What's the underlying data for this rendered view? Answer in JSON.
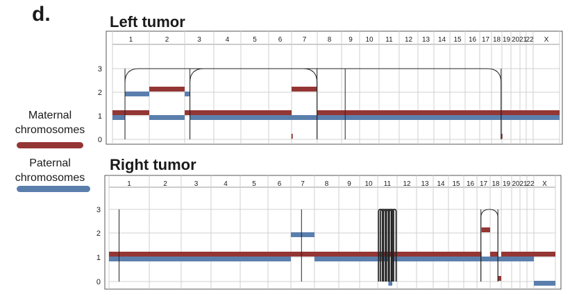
{
  "panel_label": "d.",
  "legend": {
    "maternal_label": "Maternal chromosomes",
    "paternal_label": "Paternal chromosomes",
    "maternal_color": "#943634",
    "paternal_color": "#5b7fad"
  },
  "chart_data": [
    {
      "type": "copy-number-track",
      "title": "Left tumor",
      "chromosomes": [
        "1",
        "2",
        "3",
        "4",
        "5",
        "6",
        "7",
        "8",
        "9",
        "10",
        "11",
        "12",
        "13",
        "14",
        "15",
        "16",
        "17",
        "18",
        "19",
        "20",
        "21",
        "22",
        "X"
      ],
      "y_ticks": [
        0,
        1,
        2,
        3
      ],
      "ylim": [
        0,
        3
      ],
      "grid": true,
      "maternal_segments": [
        {
          "chrom": "1",
          "start": 0.0,
          "end": 1.0,
          "copy": 1
        },
        {
          "chrom": "2",
          "start": 0.0,
          "end": 1.0,
          "copy": 2
        },
        {
          "chrom": "3",
          "start": 0.0,
          "end": 1.0,
          "copy": 1
        },
        {
          "chrom": "4",
          "start": 0.0,
          "end": 1.0,
          "copy": 1
        },
        {
          "chrom": "5",
          "start": 0.0,
          "end": 1.0,
          "copy": 1
        },
        {
          "chrom": "6",
          "start": 0.0,
          "end": 1.0,
          "copy": 1
        },
        {
          "chrom": "7",
          "start": 0.0,
          "end": 1.0,
          "copy": 2
        },
        {
          "chrom": "8",
          "start": 0.0,
          "end": 1.0,
          "copy": 1
        },
        {
          "chrom": "9",
          "start": 0.0,
          "end": 1.0,
          "copy": 1
        },
        {
          "chrom": "10",
          "start": 0.0,
          "end": 1.0,
          "copy": 1
        },
        {
          "chrom": "11",
          "start": 0.0,
          "end": 1.0,
          "copy": 1
        },
        {
          "chrom": "12",
          "start": 0.0,
          "end": 1.0,
          "copy": 1
        },
        {
          "chrom": "13",
          "start": 0.0,
          "end": 1.0,
          "copy": 1
        },
        {
          "chrom": "14",
          "start": 0.0,
          "end": 1.0,
          "copy": 1
        },
        {
          "chrom": "15",
          "start": 0.0,
          "end": 1.0,
          "copy": 1
        },
        {
          "chrom": "16",
          "start": 0.0,
          "end": 1.0,
          "copy": 1
        },
        {
          "chrom": "17",
          "start": 0.0,
          "end": 1.0,
          "copy": 1
        },
        {
          "chrom": "18",
          "start": 0.0,
          "end": 1.0,
          "copy": 1
        },
        {
          "chrom": "19",
          "start": 0.0,
          "end": 1.0,
          "copy": 1
        },
        {
          "chrom": "20",
          "start": 0.0,
          "end": 1.0,
          "copy": 1
        },
        {
          "chrom": "21",
          "start": 0.0,
          "end": 1.0,
          "copy": 1
        },
        {
          "chrom": "22",
          "start": 0.0,
          "end": 1.0,
          "copy": 1
        },
        {
          "chrom": "X",
          "start": 0.0,
          "end": 1.0,
          "copy": 1
        },
        {
          "chrom": "6",
          "start": 0.99,
          "end": 1.0,
          "copy": 0
        },
        {
          "chrom": "18",
          "start": 0.92,
          "end": 1.0,
          "copy": 0
        }
      ],
      "paternal_segments": [
        {
          "chrom": "1",
          "start": 0.0,
          "end": 0.34,
          "copy": 1
        },
        {
          "chrom": "1",
          "start": 0.34,
          "end": 1.0,
          "copy": 2
        },
        {
          "chrom": "2",
          "start": 0.0,
          "end": 1.0,
          "copy": 1
        },
        {
          "chrom": "3",
          "start": 0.0,
          "end": 0.18,
          "copy": 2
        },
        {
          "chrom": "3",
          "start": 0.18,
          "end": 1.0,
          "copy": 1
        },
        {
          "chrom": "4",
          "start": 0.0,
          "end": 1.0,
          "copy": 1
        },
        {
          "chrom": "5",
          "start": 0.0,
          "end": 1.0,
          "copy": 1
        },
        {
          "chrom": "6",
          "start": 0.0,
          "end": 1.0,
          "copy": 1
        },
        {
          "chrom": "7",
          "start": 0.0,
          "end": 1.0,
          "copy": 1
        },
        {
          "chrom": "8",
          "start": 0.0,
          "end": 1.0,
          "copy": 1
        },
        {
          "chrom": "9",
          "start": 0.0,
          "end": 1.0,
          "copy": 1
        },
        {
          "chrom": "10",
          "start": 0.0,
          "end": 1.0,
          "copy": 1
        },
        {
          "chrom": "11",
          "start": 0.0,
          "end": 1.0,
          "copy": 1
        },
        {
          "chrom": "12",
          "start": 0.0,
          "end": 1.0,
          "copy": 1
        },
        {
          "chrom": "13",
          "start": 0.0,
          "end": 1.0,
          "copy": 1
        },
        {
          "chrom": "14",
          "start": 0.0,
          "end": 1.0,
          "copy": 1
        },
        {
          "chrom": "15",
          "start": 0.0,
          "end": 1.0,
          "copy": 1
        },
        {
          "chrom": "16",
          "start": 0.0,
          "end": 1.0,
          "copy": 1
        },
        {
          "chrom": "17",
          "start": 0.0,
          "end": 1.0,
          "copy": 1
        },
        {
          "chrom": "18",
          "start": 0.0,
          "end": 1.0,
          "copy": 1
        },
        {
          "chrom": "19",
          "start": 0.0,
          "end": 1.0,
          "copy": 1
        },
        {
          "chrom": "20",
          "start": 0.0,
          "end": 1.0,
          "copy": 1
        },
        {
          "chrom": "21",
          "start": 0.0,
          "end": 1.0,
          "copy": 1
        },
        {
          "chrom": "22",
          "start": 0.0,
          "end": 1.0,
          "copy": 1
        },
        {
          "chrom": "X",
          "start": 0.0,
          "end": 1.0,
          "copy": 1
        }
      ],
      "breakpoints": [
        {
          "chrom": "1",
          "pos": 0.34
        },
        {
          "chrom": "3",
          "pos": 0.18
        },
        {
          "chrom": "7",
          "pos": 0.99
        },
        {
          "chrom": "9",
          "pos": 0.2
        },
        {
          "chrom": "18",
          "pos": 0.92
        }
      ],
      "arcs": [
        {
          "from_chrom": "1",
          "from_pos": 0.34,
          "to_chrom": "7",
          "to_pos": 0.99
        },
        {
          "from_chrom": "3",
          "from_pos": 0.18,
          "to_chrom": "18",
          "to_pos": 0.92
        }
      ]
    },
    {
      "type": "copy-number-track",
      "title": "Right tumor",
      "chromosomes": [
        "1",
        "2",
        "3",
        "4",
        "5",
        "6",
        "7",
        "8",
        "9",
        "10",
        "11",
        "12",
        "13",
        "14",
        "15",
        "16",
        "17",
        "18",
        "19",
        "20",
        "21",
        "22",
        "X"
      ],
      "y_ticks": [
        0,
        1,
        2,
        3
      ],
      "ylim": [
        0,
        3
      ],
      "grid": true,
      "maternal_segments": [
        {
          "chrom": "1",
          "start": 0.0,
          "end": 1.0,
          "copy": 1
        },
        {
          "chrom": "2",
          "start": 0.0,
          "end": 1.0,
          "copy": 1
        },
        {
          "chrom": "3",
          "start": 0.0,
          "end": 1.0,
          "copy": 1
        },
        {
          "chrom": "4",
          "start": 0.0,
          "end": 1.0,
          "copy": 1
        },
        {
          "chrom": "5",
          "start": 0.0,
          "end": 1.0,
          "copy": 1
        },
        {
          "chrom": "6",
          "start": 0.0,
          "end": 1.0,
          "copy": 1
        },
        {
          "chrom": "7",
          "start": 0.0,
          "end": 1.0,
          "copy": 1
        },
        {
          "chrom": "8",
          "start": 0.0,
          "end": 1.0,
          "copy": 1
        },
        {
          "chrom": "9",
          "start": 0.0,
          "end": 1.0,
          "copy": 1
        },
        {
          "chrom": "10",
          "start": 0.0,
          "end": 1.0,
          "copy": 1
        },
        {
          "chrom": "11",
          "start": 0.0,
          "end": 1.0,
          "copy": 1
        },
        {
          "chrom": "12",
          "start": 0.0,
          "end": 1.0,
          "copy": 1
        },
        {
          "chrom": "13",
          "start": 0.0,
          "end": 1.0,
          "copy": 1
        },
        {
          "chrom": "14",
          "start": 0.0,
          "end": 1.0,
          "copy": 1
        },
        {
          "chrom": "15",
          "start": 0.0,
          "end": 1.0,
          "copy": 1
        },
        {
          "chrom": "16",
          "start": 0.0,
          "end": 1.0,
          "copy": 1
        },
        {
          "chrom": "17",
          "start": 0.0,
          "end": 0.35,
          "copy": 1
        },
        {
          "chrom": "17",
          "start": 0.35,
          "end": 1.0,
          "copy": 2
        },
        {
          "chrom": "18",
          "start": 0.0,
          "end": 0.7,
          "copy": 1
        },
        {
          "chrom": "18",
          "start": 0.7,
          "end": 1.0,
          "copy": 0
        },
        {
          "chrom": "19",
          "start": 0.0,
          "end": 1.0,
          "copy": 1
        },
        {
          "chrom": "20",
          "start": 0.0,
          "end": 1.0,
          "copy": 1
        },
        {
          "chrom": "21",
          "start": 0.0,
          "end": 1.0,
          "copy": 1
        },
        {
          "chrom": "22",
          "start": 0.0,
          "end": 1.0,
          "copy": 1
        },
        {
          "chrom": "X",
          "start": 0.0,
          "end": 1.0,
          "copy": 1
        }
      ],
      "paternal_segments": [
        {
          "chrom": "1",
          "start": 0.0,
          "end": 1.0,
          "copy": 1
        },
        {
          "chrom": "2",
          "start": 0.0,
          "end": 1.0,
          "copy": 1
        },
        {
          "chrom": "3",
          "start": 0.0,
          "end": 1.0,
          "copy": 1
        },
        {
          "chrom": "4",
          "start": 0.0,
          "end": 1.0,
          "copy": 1
        },
        {
          "chrom": "5",
          "start": 0.0,
          "end": 1.0,
          "copy": 1
        },
        {
          "chrom": "6",
          "start": 0.0,
          "end": 1.0,
          "copy": 1
        },
        {
          "chrom": "7",
          "start": 0.0,
          "end": 1.0,
          "copy": 2
        },
        {
          "chrom": "8",
          "start": 0.0,
          "end": 1.0,
          "copy": 1
        },
        {
          "chrom": "9",
          "start": 0.0,
          "end": 1.0,
          "copy": 1
        },
        {
          "chrom": "10",
          "start": 0.0,
          "end": 1.0,
          "copy": 1
        },
        {
          "chrom": "11",
          "start": 0.0,
          "end": 0.55,
          "copy": 1
        },
        {
          "chrom": "11",
          "start": 0.55,
          "end": 0.75,
          "copy": 0
        },
        {
          "chrom": "11",
          "start": 0.75,
          "end": 1.0,
          "copy": 1
        },
        {
          "chrom": "12",
          "start": 0.0,
          "end": 1.0,
          "copy": 1
        },
        {
          "chrom": "13",
          "start": 0.0,
          "end": 1.0,
          "copy": 1
        },
        {
          "chrom": "14",
          "start": 0.0,
          "end": 1.0,
          "copy": 1
        },
        {
          "chrom": "15",
          "start": 0.0,
          "end": 1.0,
          "copy": 1
        },
        {
          "chrom": "16",
          "start": 0.0,
          "end": 1.0,
          "copy": 1
        },
        {
          "chrom": "17",
          "start": 0.0,
          "end": 1.0,
          "copy": 1
        },
        {
          "chrom": "18",
          "start": 0.0,
          "end": 1.0,
          "copy": 1
        },
        {
          "chrom": "19",
          "start": 0.0,
          "end": 1.0,
          "copy": 1
        },
        {
          "chrom": "20",
          "start": 0.0,
          "end": 1.0,
          "copy": 1
        },
        {
          "chrom": "21",
          "start": 0.0,
          "end": 1.0,
          "copy": 1
        },
        {
          "chrom": "22",
          "start": 0.0,
          "end": 1.0,
          "copy": 1
        },
        {
          "chrom": "X",
          "start": 0.0,
          "end": 1.0,
          "copy": 0
        }
      ],
      "breakpoints": [
        {
          "chrom": "1",
          "pos": 0.25
        },
        {
          "chrom": "7",
          "pos": 0.45
        },
        {
          "chrom": "17",
          "pos": 0.3
        },
        {
          "chrom": "18",
          "pos": 0.7
        }
      ],
      "arcs": [
        {
          "from_chrom": "11",
          "from_pos": 0.05,
          "to_chrom": "11",
          "to_pos": 0.25
        },
        {
          "from_chrom": "11",
          "from_pos": 0.15,
          "to_chrom": "11",
          "to_pos": 0.4
        },
        {
          "from_chrom": "11",
          "from_pos": 0.3,
          "to_chrom": "11",
          "to_pos": 0.55
        },
        {
          "from_chrom": "11",
          "from_pos": 0.45,
          "to_chrom": "11",
          "to_pos": 0.7
        },
        {
          "from_chrom": "11",
          "from_pos": 0.6,
          "to_chrom": "11",
          "to_pos": 0.82
        },
        {
          "from_chrom": "11",
          "from_pos": 0.75,
          "to_chrom": "11",
          "to_pos": 0.95
        },
        {
          "from_chrom": "17",
          "from_pos": 0.3,
          "to_chrom": "18",
          "to_pos": 0.7
        }
      ]
    }
  ]
}
